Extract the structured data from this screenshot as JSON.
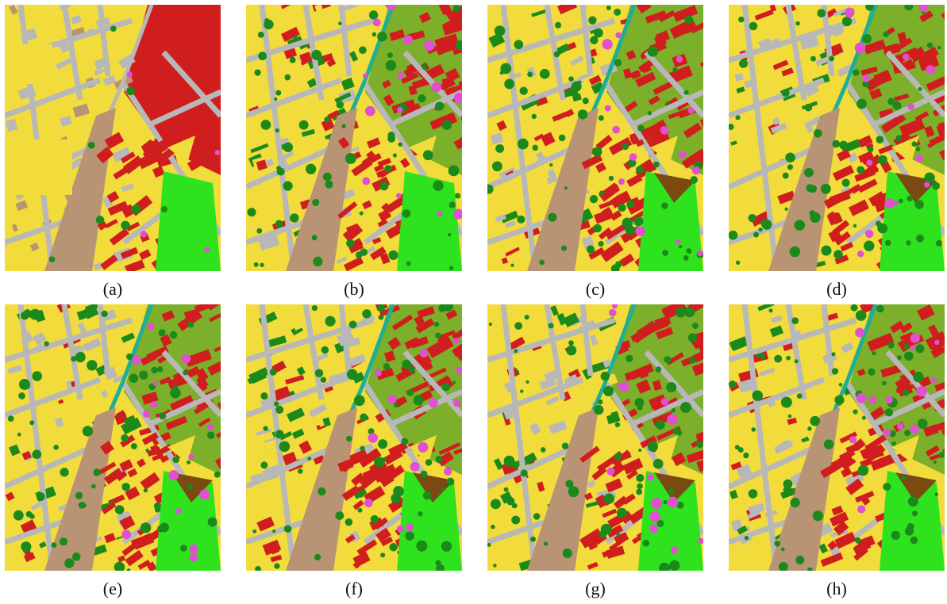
{
  "figure": {
    "panels": [
      {
        "label": "(a)",
        "map_icon": "classification-map-icon",
        "variant": 0
      },
      {
        "label": "(b)",
        "map_icon": "classification-map-icon",
        "variant": 1
      },
      {
        "label": "(c)",
        "map_icon": "classification-map-icon",
        "variant": 2
      },
      {
        "label": "(d)",
        "map_icon": "classification-map-icon",
        "variant": 3
      },
      {
        "label": "(e)",
        "map_icon": "classification-map-icon",
        "variant": 4
      },
      {
        "label": "(f)",
        "map_icon": "classification-map-icon",
        "variant": 5
      },
      {
        "label": "(g)",
        "map_icon": "classification-map-icon",
        "variant": 6
      },
      {
        "label": "(h)",
        "map_icon": "classification-map-icon",
        "variant": 7
      }
    ],
    "colors": {
      "impervious_yellow": "#f2dc3c",
      "road_gray": "#b8b8b8",
      "building_red": "#d01e1e",
      "bare_soil_tan": "#b99474",
      "water_teal": "#1fae96",
      "grass_lime": "#2ee21e",
      "tree_green": "#1b8a1b",
      "roof_magenta": "#e050d0",
      "soil_brown": "#7a4a10"
    }
  }
}
